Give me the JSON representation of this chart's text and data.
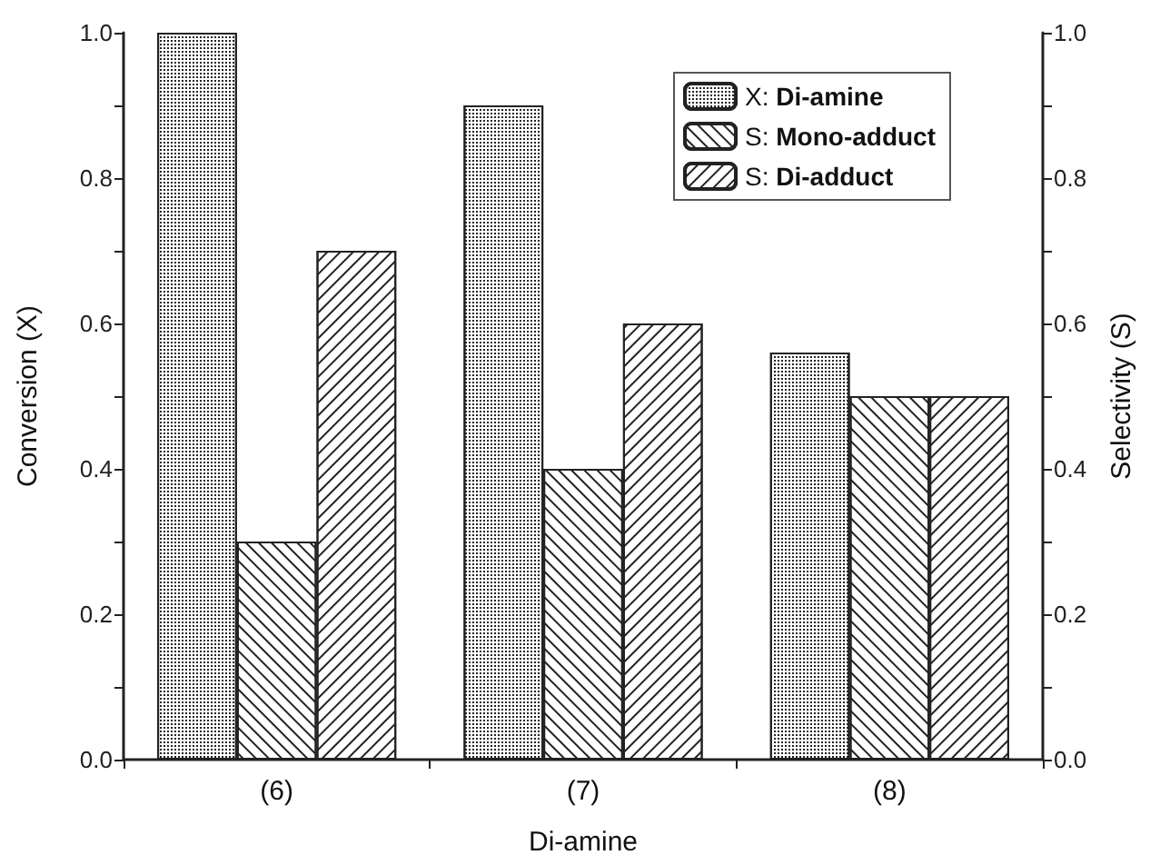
{
  "chart_data": {
    "type": "bar",
    "categories": [
      "(6)",
      "(7)",
      "(8)"
    ],
    "xlabel": "Di-amine",
    "ylabel": "Conversion (X)",
    "y2label": "Selectivity (S)",
    "series": [
      {
        "name": "X: Di-amine",
        "color": "#ffffff",
        "values": [
          1.0,
          0.9,
          0.56
        ]
      },
      {
        "name": "S: Mono-adduct",
        "color": "#ffffff",
        "values": [
          0.3,
          0.4,
          0.5
        ],
        "axis": "y2"
      },
      {
        "name": "S: Di-adduct",
        "color": "#ffffff",
        "values": [
          0.7,
          0.6,
          0.5
        ],
        "axis": "y2"
      }
    ],
    "ylim": [
      0,
      1
    ],
    "yticks": [
      {
        "value": 0,
        "label": "0.0"
      },
      {
        "value": 0.2,
        "label": "0.2"
      },
      {
        "value": 0.4,
        "label": "0.4"
      },
      {
        "value": 0.6,
        "label": "0.6"
      },
      {
        "value": 0.8,
        "label": "0.8"
      },
      {
        "value": 1,
        "label": "1.0"
      }
    ],
    "y2lim": [
      0,
      1
    ],
    "y2ticks": [
      {
        "value": 0,
        "label": "0.0"
      },
      {
        "value": 0.2,
        "label": "0.2"
      },
      {
        "value": 0.4,
        "label": "0.4"
      },
      {
        "value": 0.6,
        "label": "0.6"
      },
      {
        "value": 0.8,
        "label": "0.8"
      },
      {
        "value": 1,
        "label": "1.0"
      }
    ],
    "grid": false,
    "legend": "top right"
  }
}
